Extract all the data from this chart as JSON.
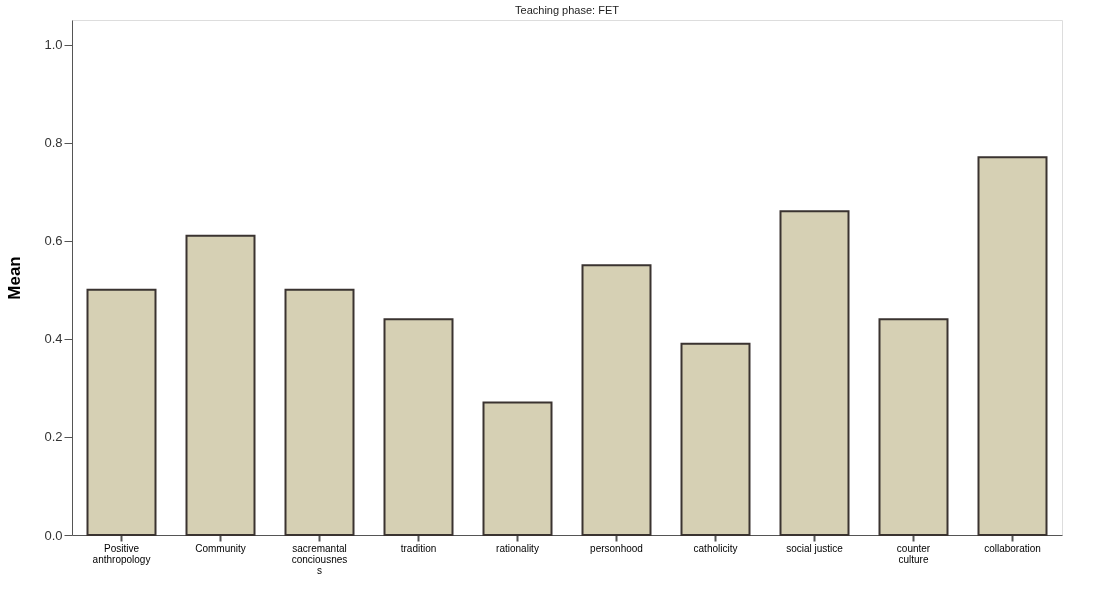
{
  "chart_data": {
    "type": "bar",
    "title": "Teaching phase: FET",
    "ylabel": "Mean",
    "categories": [
      "Positive\nanthropology",
      "Community",
      "sacremantal\nconciousnes\ns",
      "tradition",
      "rationality",
      "personhood",
      "catholicity",
      "social justice",
      "counter\nculture",
      "collaboration"
    ],
    "values": [
      0.5,
      0.61,
      0.5,
      0.44,
      0.27,
      0.55,
      0.39,
      0.66,
      0.44,
      0.77
    ],
    "color": "#d6d0b4",
    "ylim": [
      0,
      1.05
    ],
    "yticks": [
      {
        "value": 0,
        "label": "0.0"
      },
      {
        "value": 0.2,
        "label": "0.2"
      },
      {
        "value": 0.4,
        "label": "0.4"
      },
      {
        "value": 0.6,
        "label": "0.6"
      },
      {
        "value": 0.8,
        "label": "0.8"
      },
      {
        "value": 1.0,
        "label": "1.0"
      }
    ],
    "grid": false
  }
}
